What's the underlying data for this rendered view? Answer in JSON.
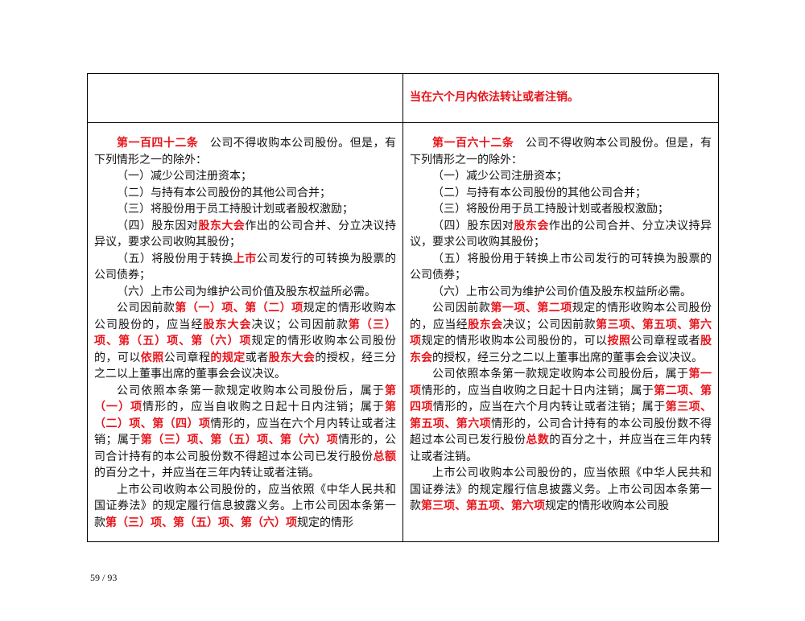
{
  "page_number": "59 / 93",
  "table": {
    "rows": [
      [
        {
          "paragraphs": []
        },
        {
          "paragraphs": [
            [
              {
                "text": "当在六个月内依法转让或者注销。",
                "emphasis": true
              }
            ]
          ]
        }
      ],
      [
        {
          "paragraphs": [
            [
              {
                "text": "第一百四十二条",
                "emphasis": true
              },
              {
                "text": "　公司不得收购本公司股份。但是，有下列情形之一的除外："
              }
            ],
            [
              {
                "text": "（一）减少公司注册资本；"
              }
            ],
            [
              {
                "text": "（二）与持有本公司股份的其他公司合并；"
              }
            ],
            [
              {
                "text": "（三）将股份用于员工持股计划或者股权激励；"
              }
            ],
            [
              {
                "text": "（四）股东因对"
              },
              {
                "text": "股东大会",
                "emphasis": true
              },
              {
                "text": "作出的公司合并、分立决议持异议，要求公司收购其股份；"
              }
            ],
            [
              {
                "text": "（五）将股份用于转换"
              },
              {
                "text": "上市",
                "emphasis": true
              },
              {
                "text": "公司发行的可转换为股票的公司债券；"
              }
            ],
            [
              {
                "text": "（六）上市公司为维护公司价值及股东权益所必需。"
              }
            ],
            [
              {
                "text": "公司因前款"
              },
              {
                "text": "第（一）项、第（二）项",
                "emphasis": true
              },
              {
                "text": "规定的情形收购本公司股份的，应当经"
              },
              {
                "text": "股东大会",
                "emphasis": true
              },
              {
                "text": "决议；公司因前款"
              },
              {
                "text": "第（三）项、第（五）项、第（六）项",
                "emphasis": true
              },
              {
                "text": "规定的情形收购本公司股份的，可以"
              },
              {
                "text": "依照",
                "emphasis": true
              },
              {
                "text": "公司章程"
              },
              {
                "text": "的规定",
                "emphasis": true
              },
              {
                "text": "或者"
              },
              {
                "text": "股东大会",
                "emphasis": true
              },
              {
                "text": "的授权，经三分之二以上董事出席的董事会会议决议。"
              }
            ],
            [
              {
                "text": "公司依照本条第一款规定收购本公司股份后，属于"
              },
              {
                "text": "第（一）项",
                "emphasis": true
              },
              {
                "text": "情形的，应当自收购之日起十日内注销；属于"
              },
              {
                "text": "第（二）项、第（四）项",
                "emphasis": true
              },
              {
                "text": "情形的，应当在六个月内转让或者注销；属于"
              },
              {
                "text": "第（三）项、第（五）项、第（六）项",
                "emphasis": true
              },
              {
                "text": "情形的，公司合计持有的本公司股份数不得超过本公司已发行股份"
              },
              {
                "text": "总额",
                "emphasis": true
              },
              {
                "text": "的百分之十，并应当在三年内转让或者注销。"
              }
            ],
            [
              {
                "text": "上市公司收购本公司股份的，应当依照《中华人民共和国证券法》的规定履行信息披露义务。上市公司因本条第一款"
              },
              {
                "text": "第（三）项、第（五）项、第（六）项",
                "emphasis": true
              },
              {
                "text": "规定的情形"
              }
            ]
          ]
        },
        {
          "paragraphs": [
            [
              {
                "text": "第一百六十二条",
                "emphasis": true
              },
              {
                "text": "　公司不得收购本公司股份。但是，有下列情形之一的除外："
              }
            ],
            [
              {
                "text": "（一）减少公司注册资本；"
              }
            ],
            [
              {
                "text": "（二）与持有本公司股份的其他公司合并；"
              }
            ],
            [
              {
                "text": "（三）将股份用于员工持股计划或者股权激励；"
              }
            ],
            [
              {
                "text": "（四）股东因对"
              },
              {
                "text": "股东会",
                "emphasis": true
              },
              {
                "text": "作出的公司合并、分立决议持异议，要求公司收购其股份；"
              }
            ],
            [
              {
                "text": "（五）将股份用于转换上市公司发行的可转换为股票的公司债券；"
              }
            ],
            [
              {
                "text": "（六）上市公司为维护公司价值及股东权益所必需。"
              }
            ],
            [
              {
                "text": "公司因前款"
              },
              {
                "text": "第一项、第二项",
                "emphasis": true
              },
              {
                "text": "规定的情形收购本公司股份的，应当经"
              },
              {
                "text": "股东会",
                "emphasis": true
              },
              {
                "text": "决议；公司因前款"
              },
              {
                "text": "第三项、第五项、第六项",
                "emphasis": true
              },
              {
                "text": "规定的情形收购本公司股份的，可以"
              },
              {
                "text": "按照",
                "emphasis": true
              },
              {
                "text": "公司章程或者"
              },
              {
                "text": "股东会",
                "emphasis": true
              },
              {
                "text": "的授权，经三分之二以上董事出席的董事会会议决议。"
              }
            ],
            [
              {
                "text": "公司依照本条第一款规定收购本公司股份后，属于"
              },
              {
                "text": "第一项",
                "emphasis": true
              },
              {
                "text": "情形的，应当自收购之日起十日内注销；属于"
              },
              {
                "text": "第二项、第四项",
                "emphasis": true
              },
              {
                "text": "情形的，应当在六个月内转让或者注销；属于"
              },
              {
                "text": "第三项、第五项、第六项",
                "emphasis": true
              },
              {
                "text": "情形的，公司合计持有的本公司股份数不得超过本公司已发行股份"
              },
              {
                "text": "总数",
                "emphasis": true
              },
              {
                "text": "的百分之十，并应当在三年内转让或者注销。"
              }
            ],
            [
              {
                "text": "上市公司收购本公司股份的，应当依照《中华人民共和国证券法》的规定履行信息披露义务。上市公司因本条第一款"
              },
              {
                "text": "第三项、第五项、第六项",
                "emphasis": true
              },
              {
                "text": "规定的情形收购本公司股"
              }
            ]
          ]
        }
      ]
    ]
  }
}
